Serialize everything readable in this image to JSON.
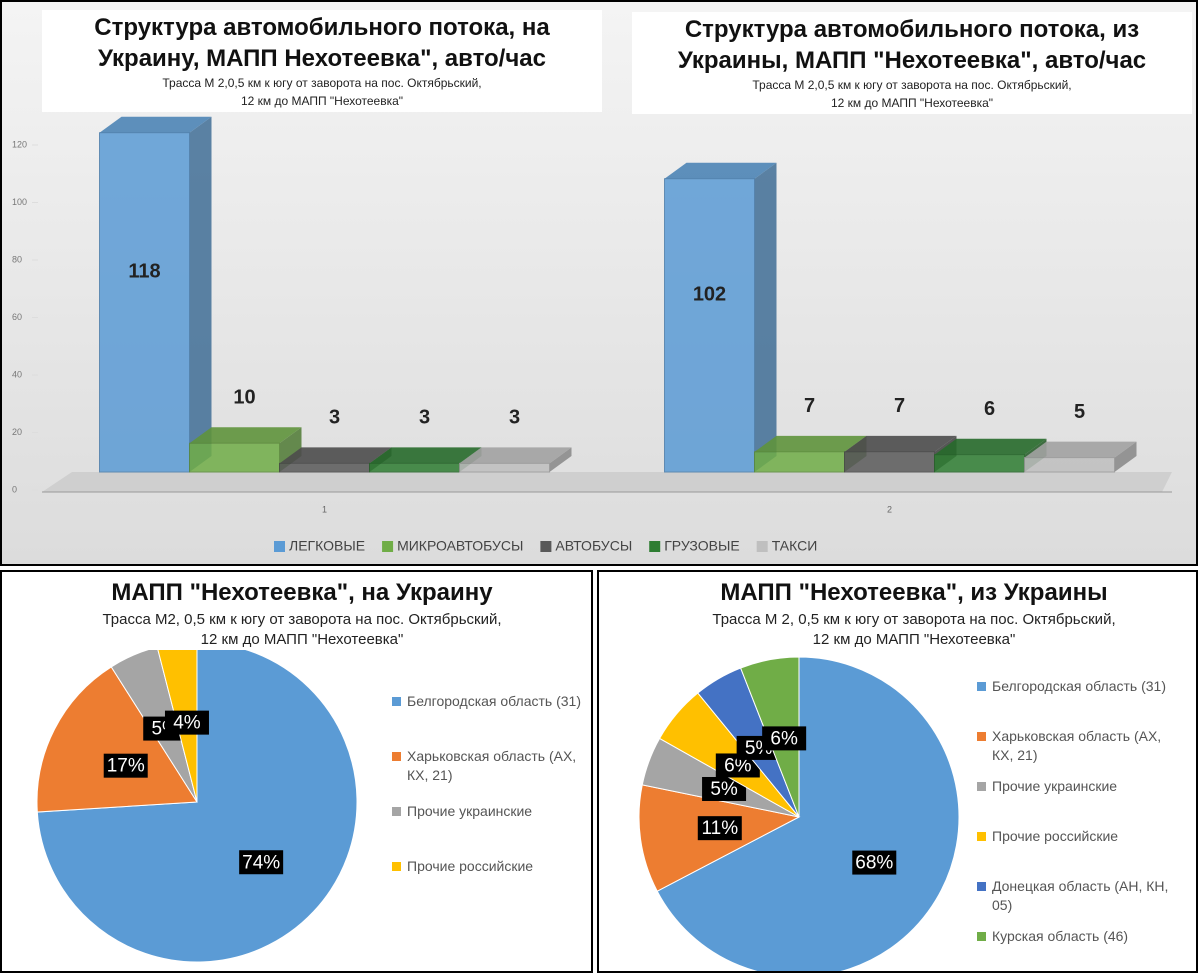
{
  "chart_data": [
    {
      "type": "bar",
      "titles": [
        [
          "Структура автомобильного потока, на",
          "Украину, МАПП Нехотеевка\", авто/час"
        ],
        [
          "Структура автомобильного потока, из",
          "Украины, МАПП \"Нехотеевка\", авто/час"
        ]
      ],
      "subtitles": [
        [
          "Трасса М 2,0,5 км к югу от заворота на пос. Октябрьский,",
          "12 км до МАПП \"Нехотеевка\""
        ],
        [
          "Трасса М 2,0,5 км к югу от заворота на пос. Октябрьский,",
          "12 км до МАПП \"Нехотеевка\""
        ]
      ],
      "categories": [
        "1",
        "2"
      ],
      "series": [
        {
          "name": "ЛЕГКОВЫЕ",
          "color": "#5b9bd5",
          "values": [
            118,
            102
          ]
        },
        {
          "name": "МИКРОАВТОБУСЫ",
          "color": "#70ad47",
          "values": [
            10,
            7
          ]
        },
        {
          "name": "АВТОБУСЫ",
          "color": "#595959",
          "values": [
            3,
            7
          ]
        },
        {
          "name": "ГРУЗОВЫЕ",
          "color": "#2e7d32",
          "values": [
            3,
            6
          ]
        },
        {
          "name": "ТАКСИ",
          "color": "#bfbfbf",
          "values": [
            3,
            5
          ]
        }
      ],
      "ylim": [
        0,
        120
      ],
      "yticks": [
        0,
        20,
        40,
        60,
        80,
        100,
        120
      ],
      "legend": "bottom"
    },
    {
      "type": "pie",
      "title": "МАПП \"Нехотеевка\", на Украину",
      "subtitle": [
        "Трасса М2, 0,5 км к югу от заворота на пос. Октябрьский,",
        "12 км до МАПП \"Нехотеевка\""
      ],
      "categories": [
        "Белгородская область (31)",
        "Харьковская область (АХ, КХ, 21)",
        "Прочие украинские",
        "Прочие российские"
      ],
      "values": [
        74,
        17,
        5,
        4
      ],
      "value_labels": [
        "74%",
        "17%",
        "5%",
        "4%"
      ],
      "colors": [
        "#5b9bd5",
        "#ed7d31",
        "#a5a5a5",
        "#ffc000"
      ],
      "legend": "right"
    },
    {
      "type": "pie",
      "title": "МАПП \"Нехотеевка\", из Украины",
      "subtitle": [
        "Трасса М 2, 0,5 км к югу от заворота на пос. Октябрьский,",
        "12 км до МАПП \"Нехотеевка\""
      ],
      "categories": [
        "Белгородская область (31)",
        "Харьковская область (АХ, КХ, 21)",
        "Прочие украинские",
        "Прочие российские",
        "Донецкая область (АН, КН, 05)",
        "Курская область (46)"
      ],
      "values": [
        68,
        11,
        5,
        6,
        5,
        6
      ],
      "value_labels": [
        "68%",
        "11%",
        "5%",
        "6%",
        "5%",
        "6%"
      ],
      "colors": [
        "#5b9bd5",
        "#ed7d31",
        "#a5a5a5",
        "#ffc000",
        "#4472c4",
        "#70ad47"
      ],
      "legend": "right"
    }
  ]
}
